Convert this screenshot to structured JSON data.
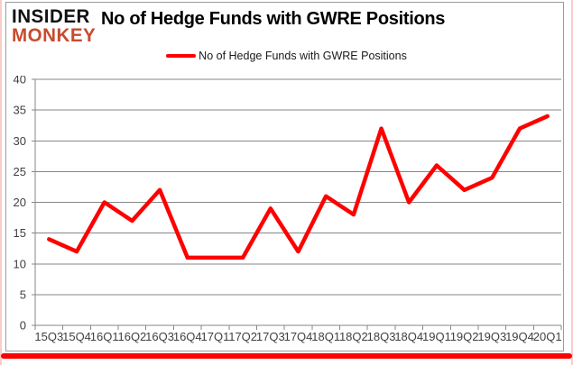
{
  "brand": {
    "line1": "INSIDER",
    "line2": "MONKEY"
  },
  "header": {
    "title": "No of Hedge Funds with GWRE Positions"
  },
  "legend": {
    "label": "No of Hedge Funds with GWRE Positions"
  },
  "chart_data": {
    "type": "line",
    "title": "No of Hedge Funds with GWRE Positions",
    "categories": [
      "15Q3",
      "15Q4",
      "16Q1",
      "16Q2",
      "16Q3",
      "16Q4",
      "17Q1",
      "17Q2",
      "17Q3",
      "17Q4",
      "18Q1",
      "18Q2",
      "18Q3",
      "18Q4",
      "19Q1",
      "19Q2",
      "19Q3",
      "19Q4",
      "20Q1"
    ],
    "series": [
      {
        "name": "No of Hedge Funds with GWRE Positions",
        "values": [
          14,
          12,
          20,
          17,
          22,
          11,
          11,
          11,
          19,
          12,
          21,
          18,
          32,
          20,
          26,
          22,
          24,
          32,
          34
        ],
        "color": "#ff0000"
      }
    ],
    "xlabel": "",
    "ylabel": "",
    "ylim": [
      0,
      40
    ],
    "yticks": [
      0,
      5,
      10,
      15,
      20,
      25,
      30,
      35,
      40
    ],
    "grid": true,
    "legend_position": "top-center"
  },
  "colors": {
    "accent_red": "#ff0000",
    "brand_red": "#c84b2d",
    "brand_black": "#111111",
    "gridline": "#878787",
    "axis_text": "#404040",
    "bottom_bar": "#fb0400",
    "edge_pink": "#f8cdc8",
    "frame_gray": "#9b9b9b"
  }
}
